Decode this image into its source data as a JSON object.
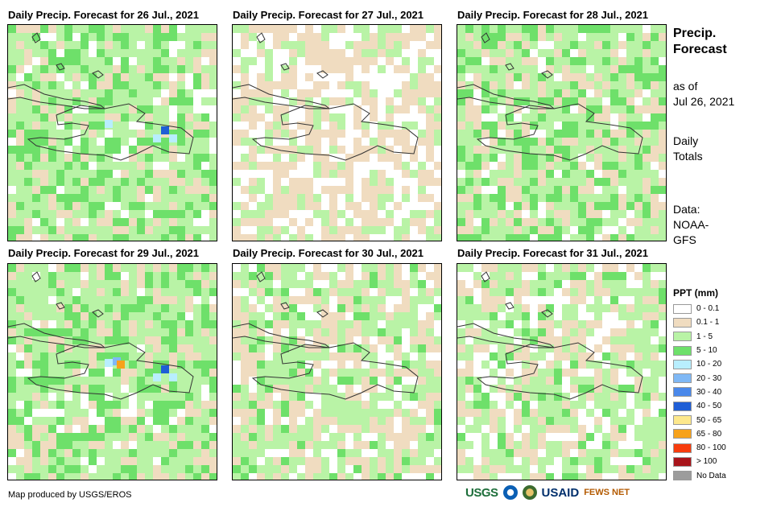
{
  "panels": [
    {
      "title": "Daily Precip. Forecast for 26 Jul., 2021",
      "seed": 11,
      "pattern": "wet"
    },
    {
      "title": "Daily Precip. Forecast for 27 Jul., 2021",
      "seed": 23,
      "pattern": "dry"
    },
    {
      "title": "Daily Precip. Forecast for 28 Jul., 2021",
      "seed": 37,
      "pattern": "wet"
    },
    {
      "title": "Daily Precip. Forecast for 29 Jul., 2021",
      "seed": 41,
      "pattern": "wet"
    },
    {
      "title": "Daily Precip. Forecast for 30 Jul., 2021",
      "seed": 53,
      "pattern": "mixed"
    },
    {
      "title": "Daily Precip. Forecast for 31 Jul., 2021",
      "seed": 67,
      "pattern": "mixed"
    }
  ],
  "sidebar": {
    "title": "Precip.\nForecast",
    "as_of_label": "as of",
    "as_of_date": "Jul 26, 2021",
    "totals_label": "Daily\nTotals",
    "data_label": "Data:\nNOAA-\nGFS"
  },
  "legend": {
    "title": "PPT (mm)",
    "items": [
      {
        "label": "0 - 0.1",
        "color": "#ffffff"
      },
      {
        "label": "0.1 - 1",
        "color": "#f0dcc0"
      },
      {
        "label": "1 - 5",
        "color": "#b9f3a6"
      },
      {
        "label": "5 - 10",
        "color": "#6ee06a"
      },
      {
        "label": "10 - 20",
        "color": "#b8eefe"
      },
      {
        "label": "20 - 30",
        "color": "#7fb8f5"
      },
      {
        "label": "30 - 40",
        "color": "#4a88ea"
      },
      {
        "label": "40 - 50",
        "color": "#1f5ed6"
      },
      {
        "label": "50 - 65",
        "color": "#fde88c"
      },
      {
        "label": "65 - 80",
        "color": "#f7a21b"
      },
      {
        "label": "80 - 100",
        "color": "#f73c0d"
      },
      {
        "label": "> 100",
        "color": "#a8141b"
      },
      {
        "label": "No Data",
        "color": "#9c9c9c"
      }
    ]
  },
  "footer": {
    "credit": "Map produced by USGS/EROS",
    "logos": [
      "USGS",
      "NOAA",
      "DOI",
      "USAID",
      "FEWS NET"
    ]
  }
}
